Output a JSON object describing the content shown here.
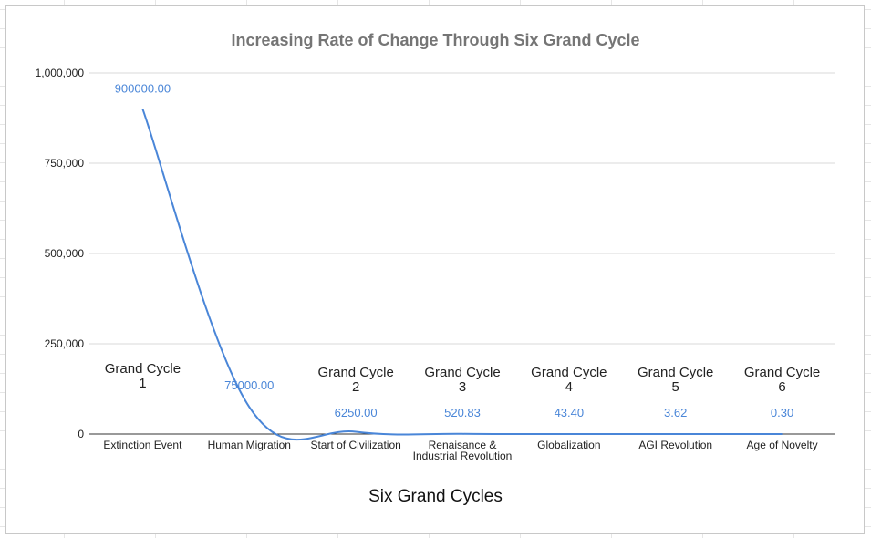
{
  "chart_data": {
    "type": "line",
    "title": "Increasing Rate of Change Through Six Grand Cycle",
    "xlabel": "Six Grand Cycles",
    "ylabel": "",
    "ylim": [
      0,
      1000000
    ],
    "yticks": [
      "0",
      "250,000",
      "500,000",
      "750,000",
      "1,000,000"
    ],
    "ytick_values": [
      0,
      250000,
      500000,
      750000,
      1000000
    ],
    "grid": true,
    "categories": [
      "Extinction Event",
      "Human Migration",
      "Start of Civilization",
      "Renaisance & Industrial Revolution",
      "Globalization",
      "AGI Revolution",
      "Age of Novelty"
    ],
    "series": [
      {
        "name": "",
        "color": "#4a86d8",
        "values": [
          900000,
          75000,
          6250,
          520.83,
          43.4,
          3.62,
          0.3
        ],
        "data_labels": [
          "900000.00",
          "75000.00",
          "6250.00",
          "520.83",
          "43.40",
          "3.62",
          "0.30"
        ]
      }
    ],
    "annotations": [
      {
        "line1": "Grand Cycle",
        "line2": "1",
        "category": 0
      },
      {
        "line1": "Grand Cycle",
        "line2": "2",
        "category": 2
      },
      {
        "line1": "Grand Cycle",
        "line2": "3",
        "category": 3
      },
      {
        "line1": "Grand Cycle",
        "line2": "4",
        "category": 4
      },
      {
        "line1": "Grand Cycle",
        "line2": "5",
        "category": 5
      },
      {
        "line1": "Grand Cycle",
        "line2": "6",
        "category": 6
      }
    ]
  }
}
